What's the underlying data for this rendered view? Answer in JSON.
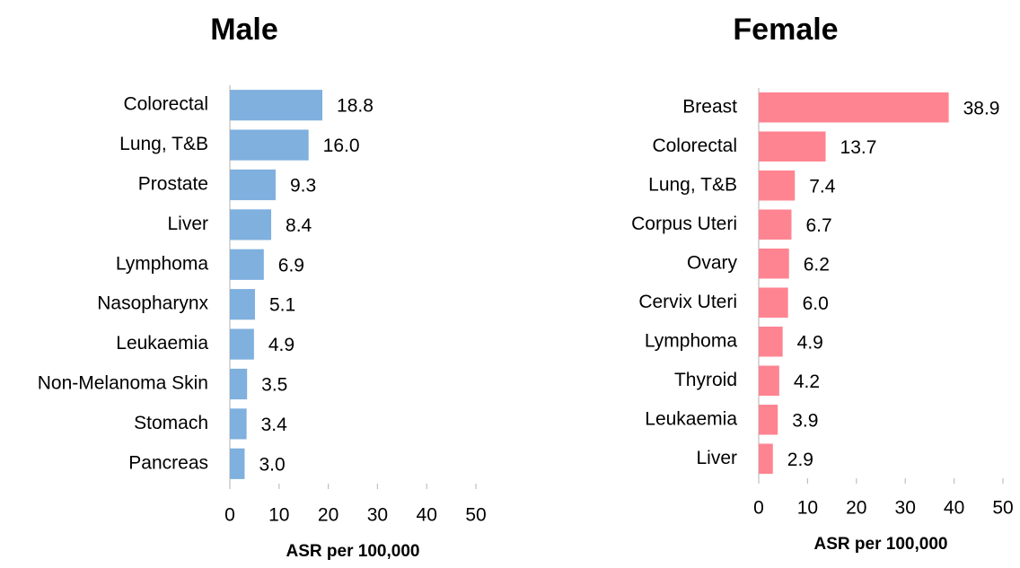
{
  "chart_data": [
    {
      "type": "bar",
      "orientation": "horizontal",
      "title": "Male",
      "x_label": "ASR per 100,000",
      "categories": [
        "Colorectal",
        "Lung, T&B",
        "Prostate",
        "Liver",
        "Lymphoma",
        "Nasopharynx",
        "Leukaemia",
        "Non-Melanoma Skin",
        "Stomach",
        "Pancreas"
      ],
      "values": [
        18.8,
        16.0,
        9.3,
        8.4,
        6.9,
        5.1,
        4.9,
        3.5,
        3.4,
        3.0
      ],
      "value_labels": [
        "18.8",
        "16.0",
        "9.3",
        "8.4",
        "6.9",
        "5.1",
        "4.9",
        "3.5",
        "3.4",
        "3.0"
      ],
      "color": "#7fb0de",
      "xlim": [
        0,
        50
      ],
      "xticks": [
        0,
        10,
        20,
        30,
        40,
        50
      ]
    },
    {
      "type": "bar",
      "orientation": "horizontal",
      "title": "Female",
      "x_label": "ASR per 100,000",
      "categories": [
        "Breast",
        "Colorectal",
        "Lung, T&B",
        "Corpus Uteri",
        "Ovary",
        "Cervix Uteri",
        "Lymphoma",
        "Thyroid",
        "Leukaemia",
        "Liver"
      ],
      "values": [
        38.9,
        13.7,
        7.4,
        6.7,
        6.2,
        6.0,
        4.9,
        4.2,
        3.9,
        2.9
      ],
      "value_labels": [
        "38.9",
        "13.7",
        "7.4",
        "6.7",
        "6.2",
        "6.0",
        "4.9",
        "4.2",
        "3.9",
        "2.9"
      ],
      "color": "#ff8491",
      "xlim": [
        0,
        50
      ],
      "xticks": [
        0,
        10,
        20,
        30,
        40,
        50
      ]
    }
  ]
}
